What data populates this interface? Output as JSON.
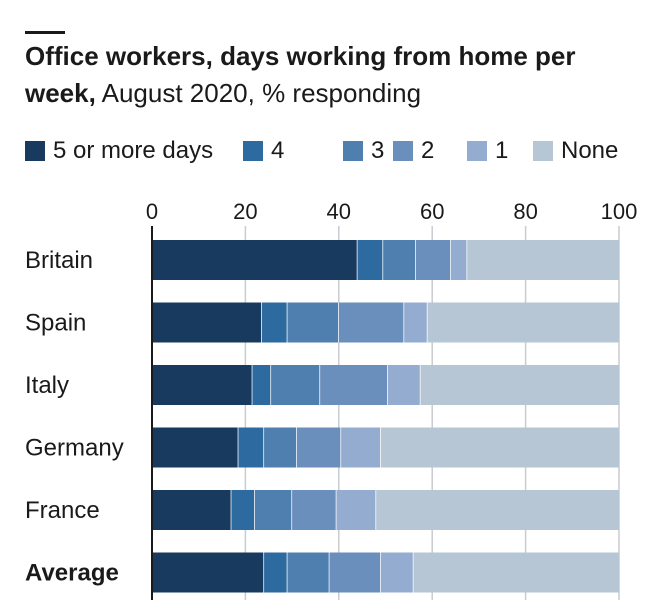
{
  "title_bold": "Office workers, days working from home per week,",
  "title_rest": " August 2020, % responding",
  "legend": [
    {
      "label": "5 or more days",
      "color": "#173a5e"
    },
    {
      "label": "4",
      "color": "#2c6aa0"
    },
    {
      "label": "3",
      "color": "#4f7fae"
    },
    {
      "label": "2",
      "color": "#6b8fbd"
    },
    {
      "label": "1",
      "color": "#94acd0"
    },
    {
      "label": "None",
      "color": "#b6c6d4"
    }
  ],
  "chart_data": {
    "type": "bar",
    "orientation": "horizontal",
    "stacked": true,
    "categories": [
      "Britain",
      "Spain",
      "Italy",
      "Germany",
      "France",
      "Average"
    ],
    "bold_categories": [
      "Average"
    ],
    "series": [
      {
        "name": "5 or more days",
        "values": [
          44,
          23.5,
          21.5,
          18.5,
          17,
          24
        ]
      },
      {
        "name": "4",
        "values": [
          5.5,
          5.5,
          4,
          5.5,
          5,
          5
        ]
      },
      {
        "name": "3",
        "values": [
          7,
          11,
          10.5,
          7,
          8,
          9
        ]
      },
      {
        "name": "2",
        "values": [
          7.5,
          14,
          14.5,
          9.5,
          9.5,
          11
        ]
      },
      {
        "name": "1",
        "values": [
          3.5,
          5,
          7,
          8.5,
          8.5,
          7
        ]
      },
      {
        "name": "None",
        "values": [
          32.5,
          41,
          42.5,
          51,
          52,
          44
        ]
      }
    ],
    "xlim": [
      0,
      100
    ],
    "xticks": [
      0,
      20,
      40,
      60,
      80,
      100
    ],
    "grid": true
  }
}
